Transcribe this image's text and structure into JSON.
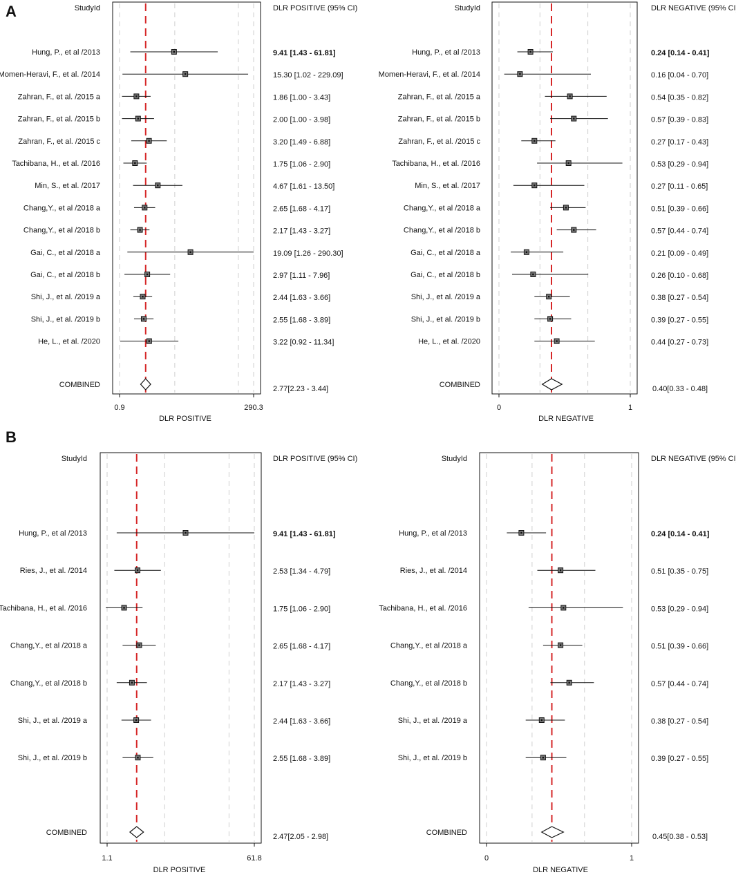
{
  "chart_data": [
    {
      "type": "forest",
      "panel": "A",
      "study_header": "StudyId",
      "ci_header": "DLR POSITIVE (95% CI)",
      "xlabel": "DLR POSITIVE",
      "scale": "log",
      "xlim": [
        0.9,
        290.3
      ],
      "xtick_labels": [
        "0.9",
        "290.3"
      ],
      "pooled_line": 2.77,
      "studies": [
        {
          "name": "Hung, P., et al /2013",
          "est": 9.41,
          "lo": 1.43,
          "hi": 61.81,
          "ci_text": "9.41 [1.43 - 61.81]"
        },
        {
          "name": "Momen-Heravi, F., et al. /2014",
          "est": 15.3,
          "lo": 1.02,
          "hi": 229.09,
          "ci_text": "15.30 [1.02 - 229.09]"
        },
        {
          "name": "Zahran, F., et al. /2015 a",
          "est": 1.86,
          "lo": 1.0,
          "hi": 3.43,
          "ci_text": "1.86 [1.00 - 3.43]"
        },
        {
          "name": "Zahran, F., et al. /2015 b",
          "est": 2.0,
          "lo": 1.0,
          "hi": 3.98,
          "ci_text": "2.00 [1.00 - 3.98]"
        },
        {
          "name": "Zahran, F., et al. /2015 c",
          "est": 3.2,
          "lo": 1.49,
          "hi": 6.88,
          "ci_text": "3.20 [1.49 - 6.88]"
        },
        {
          "name": "Tachibana, H., et al. /2016",
          "est": 1.75,
          "lo": 1.06,
          "hi": 2.9,
          "ci_text": "1.75 [1.06 - 2.90]"
        },
        {
          "name": "Min, S., et al. /2017",
          "est": 4.67,
          "lo": 1.61,
          "hi": 13.5,
          "ci_text": "4.67 [1.61 - 13.50]"
        },
        {
          "name": "Chang,Y., et al /2018 a",
          "est": 2.65,
          "lo": 1.68,
          "hi": 4.17,
          "ci_text": "2.65 [1.68 - 4.17]"
        },
        {
          "name": "Chang,Y., et al /2018 b",
          "est": 2.17,
          "lo": 1.43,
          "hi": 3.27,
          "ci_text": "2.17 [1.43 - 3.27]"
        },
        {
          "name": "Gai, C., et al /2018 a",
          "est": 19.09,
          "lo": 1.26,
          "hi": 290.3,
          "ci_text": "19.09 [1.26 - 290.30]"
        },
        {
          "name": "Gai, C., et al /2018 b",
          "est": 2.97,
          "lo": 1.11,
          "hi": 7.96,
          "ci_text": "2.97 [1.11 - 7.96]"
        },
        {
          "name": "Shi, J., et al. /2019 a",
          "est": 2.44,
          "lo": 1.63,
          "hi": 3.66,
          "ci_text": "2.44 [1.63 - 3.66]"
        },
        {
          "name": "Shi, J., et al. /2019 b",
          "est": 2.55,
          "lo": 1.68,
          "hi": 3.89,
          "ci_text": "2.55 [1.68 - 3.89]"
        },
        {
          "name": "He, L., et al. /2020",
          "est": 3.22,
          "lo": 0.92,
          "hi": 11.34,
          "ci_text": "3.22 [0.92 - 11.34]"
        }
      ],
      "combined": {
        "name": "COMBINED",
        "est": 2.77,
        "lo": 2.23,
        "hi": 3.44,
        "ci_text": "2.77[2.23 - 3.44]"
      }
    },
    {
      "type": "forest",
      "panel": "A",
      "study_header": "StudyId",
      "ci_header": "DLR NEGATIVE (95% CI)",
      "xlabel": "DLR NEGATIVE",
      "scale": "linear",
      "xlim": [
        0,
        1
      ],
      "xtick_labels": [
        "0",
        "1"
      ],
      "pooled_line": 0.4,
      "studies": [
        {
          "name": "Hung, P., et al /2013",
          "est": 0.24,
          "lo": 0.14,
          "hi": 0.41,
          "ci_text": "0.24 [0.14 - 0.41]"
        },
        {
          "name": "Momen-Heravi, F., et al. /2014",
          "est": 0.16,
          "lo": 0.04,
          "hi": 0.7,
          "ci_text": "0.16 [0.04 - 0.70]"
        },
        {
          "name": "Zahran, F., et al. /2015 a",
          "est": 0.54,
          "lo": 0.35,
          "hi": 0.82,
          "ci_text": "0.54 [0.35 - 0.82]"
        },
        {
          "name": "Zahran, F., et al. /2015 b",
          "est": 0.57,
          "lo": 0.39,
          "hi": 0.83,
          "ci_text": "0.57 [0.39 - 0.83]"
        },
        {
          "name": "Zahran, F., et al. /2015 c",
          "est": 0.27,
          "lo": 0.17,
          "hi": 0.43,
          "ci_text": "0.27 [0.17 - 0.43]"
        },
        {
          "name": "Tachibana, H., et al. /2016",
          "est": 0.53,
          "lo": 0.29,
          "hi": 0.94,
          "ci_text": "0.53 [0.29 - 0.94]"
        },
        {
          "name": "Min, S., et al. /2017",
          "est": 0.27,
          "lo": 0.11,
          "hi": 0.65,
          "ci_text": "0.27 [0.11 - 0.65]"
        },
        {
          "name": "Chang,Y., et al /2018 a",
          "est": 0.51,
          "lo": 0.39,
          "hi": 0.66,
          "ci_text": "0.51 [0.39 - 0.66]"
        },
        {
          "name": "Chang,Y., et al /2018 b",
          "est": 0.57,
          "lo": 0.44,
          "hi": 0.74,
          "ci_text": "0.57 [0.44 - 0.74]"
        },
        {
          "name": "Gai, C., et al /2018 a",
          "est": 0.21,
          "lo": 0.09,
          "hi": 0.49,
          "ci_text": "0.21 [0.09 - 0.49]"
        },
        {
          "name": "Gai, C., et al /2018 b",
          "est": 0.26,
          "lo": 0.1,
          "hi": 0.68,
          "ci_text": "0.26 [0.10 - 0.68]"
        },
        {
          "name": "Shi, J., et al. /2019 a",
          "est": 0.38,
          "lo": 0.27,
          "hi": 0.54,
          "ci_text": "0.38 [0.27 - 0.54]"
        },
        {
          "name": "Shi, J., et al. /2019 b",
          "est": 0.39,
          "lo": 0.27,
          "hi": 0.55,
          "ci_text": "0.39 [0.27 - 0.55]"
        },
        {
          "name": "He, L., et al. /2020",
          "est": 0.44,
          "lo": 0.27,
          "hi": 0.73,
          "ci_text": "0.44 [0.27 - 0.73]"
        }
      ],
      "combined": {
        "name": "COMBINED",
        "est": 0.4,
        "lo": 0.33,
        "hi": 0.48,
        "ci_text": "0.40[0.33 - 0.48]"
      }
    },
    {
      "type": "forest",
      "panel": "B",
      "study_header": "StudyId",
      "ci_header": "DLR POSITIVE (95% CI)",
      "xlabel": "DLR POSITIVE",
      "scale": "log",
      "xlim": [
        1.1,
        61.8
      ],
      "xtick_labels": [
        "1.1",
        "61.8"
      ],
      "pooled_line": 2.47,
      "studies": [
        {
          "name": "Hung, P., et al /2013",
          "est": 9.41,
          "lo": 1.43,
          "hi": 61.81,
          "ci_text": "9.41 [1.43 - 61.81]"
        },
        {
          "name": "Ries, J., et al. /2014",
          "est": 2.53,
          "lo": 1.34,
          "hi": 4.79,
          "ci_text": "2.53 [1.34 - 4.79]"
        },
        {
          "name": "Tachibana, H., et al. /2016",
          "est": 1.75,
          "lo": 1.06,
          "hi": 2.9,
          "ci_text": "1.75 [1.06 - 2.90]"
        },
        {
          "name": "Chang,Y., et al /2018 a",
          "est": 2.65,
          "lo": 1.68,
          "hi": 4.17,
          "ci_text": "2.65 [1.68 - 4.17]"
        },
        {
          "name": "Chang,Y., et al /2018 b",
          "est": 2.17,
          "lo": 1.43,
          "hi": 3.27,
          "ci_text": "2.17 [1.43 - 3.27]"
        },
        {
          "name": "Shi, J., et al. /2019 a",
          "est": 2.44,
          "lo": 1.63,
          "hi": 3.66,
          "ci_text": "2.44 [1.63 - 3.66]"
        },
        {
          "name": "Shi, J., et al. /2019 b",
          "est": 2.55,
          "lo": 1.68,
          "hi": 3.89,
          "ci_text": "2.55 [1.68 - 3.89]"
        }
      ],
      "combined": {
        "name": "COMBINED",
        "est": 2.47,
        "lo": 2.05,
        "hi": 2.98,
        "ci_text": "2.47[2.05 - 2.98]"
      }
    },
    {
      "type": "forest",
      "panel": "B",
      "study_header": "StudyId",
      "ci_header": "DLR NEGATIVE (95% CI)",
      "xlabel": "DLR NEGATIVE",
      "scale": "linear",
      "xlim": [
        0,
        1
      ],
      "xtick_labels": [
        "0",
        "1"
      ],
      "pooled_line": 0.45,
      "studies": [
        {
          "name": "Hung, P., et al /2013",
          "est": 0.24,
          "lo": 0.14,
          "hi": 0.41,
          "ci_text": "0.24 [0.14 - 0.41]"
        },
        {
          "name": "Ries, J., et al. /2014",
          "est": 0.51,
          "lo": 0.35,
          "hi": 0.75,
          "ci_text": "0.51 [0.35 - 0.75]"
        },
        {
          "name": "Tachibana, H., et al. /2016",
          "est": 0.53,
          "lo": 0.29,
          "hi": 0.94,
          "ci_text": "0.53 [0.29 - 0.94]"
        },
        {
          "name": "Chang,Y., et al /2018 a",
          "est": 0.51,
          "lo": 0.39,
          "hi": 0.66,
          "ci_text": "0.51 [0.39 - 0.66]"
        },
        {
          "name": "Chang,Y., et al /2018 b",
          "est": 0.57,
          "lo": 0.44,
          "hi": 0.74,
          "ci_text": "0.57 [0.44 - 0.74]"
        },
        {
          "name": "Shi, J., et al. /2019 a",
          "est": 0.38,
          "lo": 0.27,
          "hi": 0.54,
          "ci_text": "0.38 [0.27 - 0.54]"
        },
        {
          "name": "Shi, J., et al. /2019 b",
          "est": 0.39,
          "lo": 0.27,
          "hi": 0.55,
          "ci_text": "0.39 [0.27 - 0.55]"
        }
      ],
      "combined": {
        "name": "COMBINED",
        "est": 0.45,
        "lo": 0.38,
        "hi": 0.53,
        "ci_text": "0.45[0.38 - 0.53]"
      }
    }
  ],
  "panel_labels": [
    "A",
    "B"
  ],
  "colors": {
    "pooled_line": "#d62728",
    "grid": "#cfcfcf",
    "ink": "#111111"
  }
}
